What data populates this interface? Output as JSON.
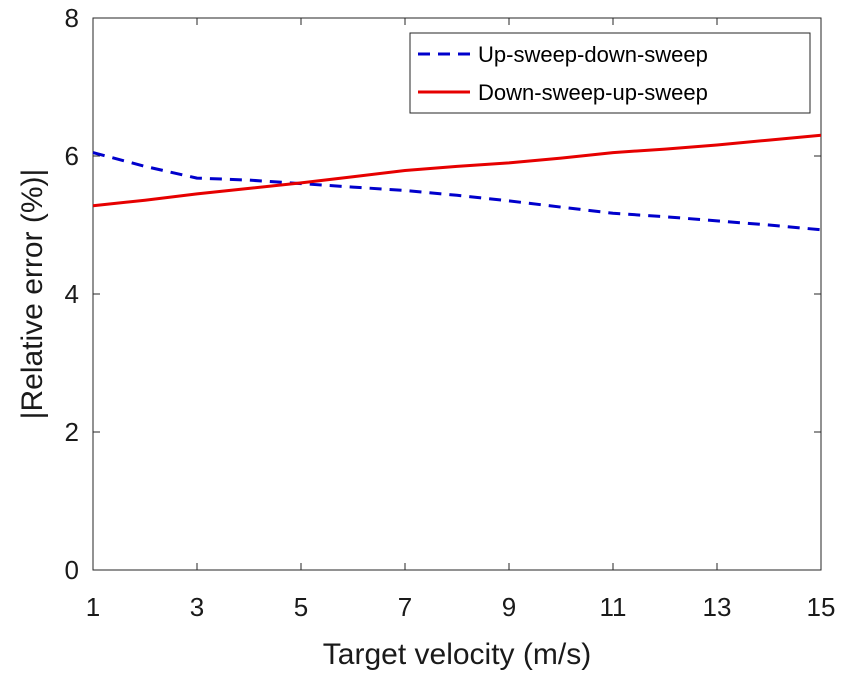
{
  "chart_data": {
    "type": "line",
    "xlabel": "Target velocity (m/s)",
    "ylabel": "|Relative error (%)|",
    "xlim": [
      1,
      15
    ],
    "ylim": [
      0,
      8
    ],
    "xticks": [
      "1",
      "3",
      "5",
      "7",
      "9",
      "11",
      "13",
      "15"
    ],
    "yticks": [
      "0",
      "2",
      "4",
      "6",
      "8"
    ],
    "grid": false,
    "legend_position": "top-right",
    "series": [
      {
        "name": "Up-sweep-down-sweep",
        "color": "#0000cc",
        "style": "dashed",
        "x": [
          1,
          2,
          3,
          4,
          5,
          6,
          7,
          8,
          9,
          10,
          11,
          12,
          13,
          14,
          15
        ],
        "y": [
          6.05,
          5.85,
          5.68,
          5.65,
          5.6,
          5.55,
          5.5,
          5.43,
          5.35,
          5.26,
          5.17,
          5.12,
          5.06,
          5.0,
          4.93
        ]
      },
      {
        "name": "Down-sweep-up-sweep",
        "color": "#e60000",
        "style": "solid",
        "x": [
          1,
          2,
          3,
          4,
          5,
          6,
          7,
          8,
          9,
          10,
          11,
          12,
          13,
          14,
          15
        ],
        "y": [
          5.28,
          5.36,
          5.45,
          5.53,
          5.61,
          5.7,
          5.79,
          5.85,
          5.9,
          5.97,
          6.05,
          6.1,
          6.16,
          6.23,
          6.3
        ]
      }
    ]
  }
}
